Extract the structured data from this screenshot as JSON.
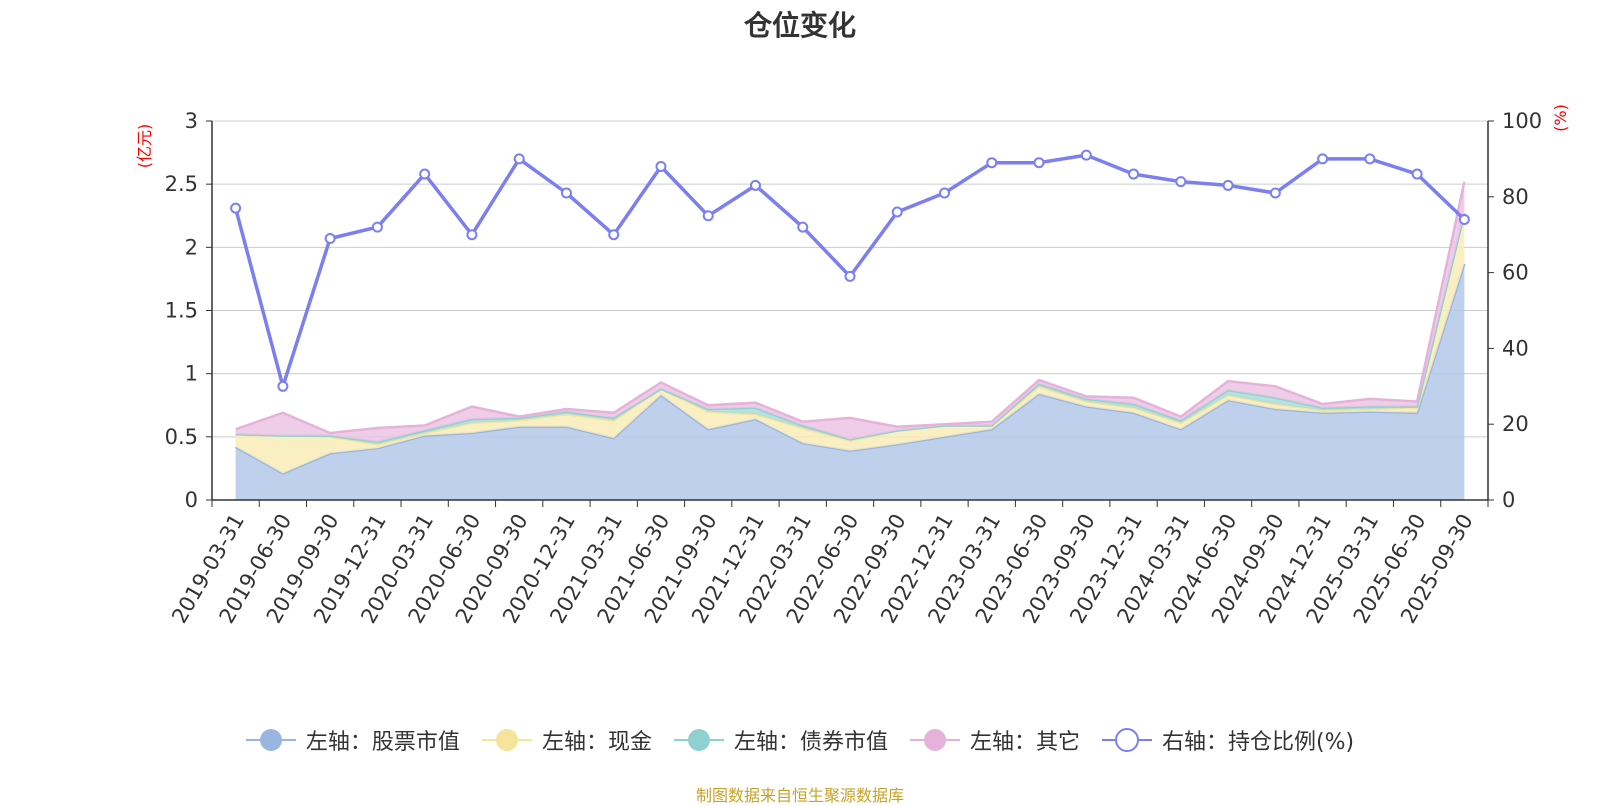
{
  "chart_data": {
    "type": "area",
    "title": "仓位变化",
    "left_unit": "(亿元)",
    "right_unit": "(%)",
    "source": "制图数据来自恒生聚源数据库",
    "left_axis": {
      "min": 0,
      "max": 3,
      "ticks": [
        0,
        0.5,
        1,
        1.5,
        2,
        2.5,
        3
      ],
      "tick_labels": [
        "0",
        "0.5",
        "1",
        "1.5",
        "2",
        "2.5",
        "3"
      ]
    },
    "right_axis": {
      "min": 0,
      "max": 100,
      "ticks": [
        0,
        20,
        40,
        60,
        80,
        100
      ],
      "tick_labels": [
        "0",
        "20",
        "40",
        "60",
        "80",
        "100"
      ]
    },
    "grid": true,
    "legend_position": "bottom",
    "categories": [
      "2019-03-31",
      "2019-06-30",
      "2019-09-30",
      "2019-12-31",
      "2020-03-31",
      "2020-06-30",
      "2020-09-30",
      "2020-12-31",
      "2021-03-31",
      "2021-06-30",
      "2021-09-30",
      "2021-12-31",
      "2022-03-31",
      "2022-06-30",
      "2022-09-30",
      "2022-12-31",
      "2023-03-31",
      "2023-06-30",
      "2023-09-30",
      "2023-12-31",
      "2024-03-31",
      "2024-06-30",
      "2024-09-30",
      "2024-12-31",
      "2025-03-31",
      "2025-06-30",
      "2025-09-30"
    ],
    "series": [
      {
        "name": "左轴：股票市值",
        "axis": "left",
        "stacked": true,
        "color": "#9ab5e0",
        "fill": "#b4c8ea",
        "values": [
          0.42,
          0.21,
          0.37,
          0.41,
          0.51,
          0.53,
          0.58,
          0.58,
          0.49,
          0.83,
          0.56,
          0.64,
          0.45,
          0.39,
          0.44,
          0.5,
          0.56,
          0.84,
          0.74,
          0.69,
          0.56,
          0.79,
          0.72,
          0.69,
          0.7,
          0.69,
          1.87
        ]
      },
      {
        "name": "左轴：现金",
        "axis": "left",
        "stacked": true,
        "color": "#f5e49a",
        "fill": "#f8ecb8",
        "values": [
          0.1,
          0.3,
          0.13,
          0.03,
          0.02,
          0.08,
          0.05,
          0.1,
          0.14,
          0.05,
          0.14,
          0.04,
          0.12,
          0.08,
          0.11,
          0.09,
          0.03,
          0.06,
          0.04,
          0.04,
          0.05,
          0.04,
          0.04,
          0.02,
          0.02,
          0.04,
          0.4
        ]
      },
      {
        "name": "左轴：债券市值",
        "axis": "left",
        "stacked": true,
        "color": "#8fd0d0",
        "fill": "#a9dcdc",
        "values": [
          0,
          0,
          0.01,
          0.02,
          0.02,
          0.03,
          0.02,
          0.02,
          0.02,
          0,
          0.02,
          0.05,
          0.02,
          0.01,
          0,
          0,
          0,
          0.02,
          0.02,
          0.03,
          0.02,
          0.04,
          0.05,
          0.02,
          0.02,
          0.01,
          0
        ]
      },
      {
        "name": "左轴：其它",
        "axis": "left",
        "stacked": true,
        "color": "#e5b3da",
        "fill": "#ecc4e4",
        "values": [
          0.04,
          0.18,
          0.02,
          0.11,
          0.04,
          0.1,
          0.01,
          0.02,
          0.04,
          0.05,
          0.03,
          0.04,
          0.03,
          0.17,
          0.03,
          0.01,
          0.03,
          0.03,
          0.02,
          0.05,
          0.03,
          0.07,
          0.09,
          0.03,
          0.06,
          0.04,
          0.25
        ]
      },
      {
        "name": "右轴：持仓比例(%)",
        "axis": "right",
        "type": "line",
        "color": "#7b7ff0",
        "values": [
          77,
          30,
          69,
          72,
          86,
          70,
          90,
          81,
          70,
          88,
          75,
          83,
          72,
          59,
          76,
          81,
          89,
          89,
          91,
          86,
          84,
          83,
          81,
          90,
          90,
          86,
          74
        ]
      }
    ]
  }
}
